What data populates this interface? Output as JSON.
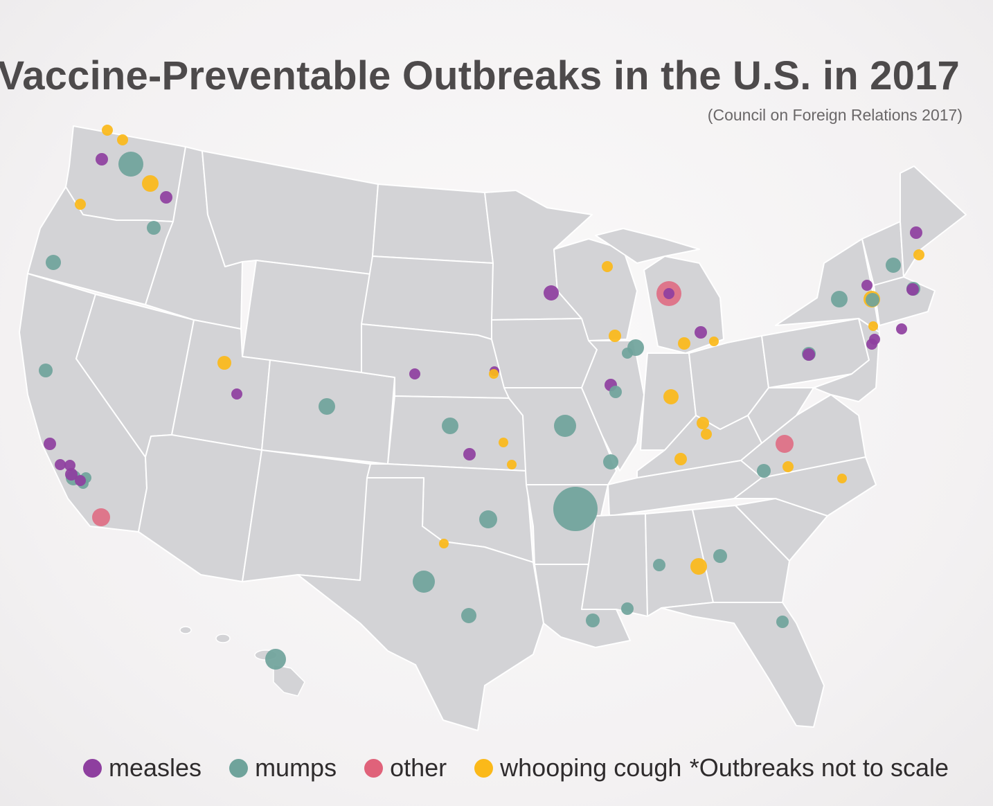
{
  "title": "Vaccine-Preventable Outbreaks in the U.S. in 2017",
  "source": "(Council on Foreign Relations 2017)",
  "note": "*Outbreaks not to scale",
  "legend": [
    {
      "key": "measles",
      "label": "measles",
      "color": "#8e3f9f"
    },
    {
      "key": "mumps",
      "label": "mumps",
      "color": "#6fa39b"
    },
    {
      "key": "other",
      "label": "other",
      "color": "#e0627a"
    },
    {
      "key": "whooping",
      "label": "whooping cough",
      "color": "#fbb919"
    }
  ],
  "map": {
    "land_color": "#d3d3d6",
    "border_color": "#ffffff"
  }
}
